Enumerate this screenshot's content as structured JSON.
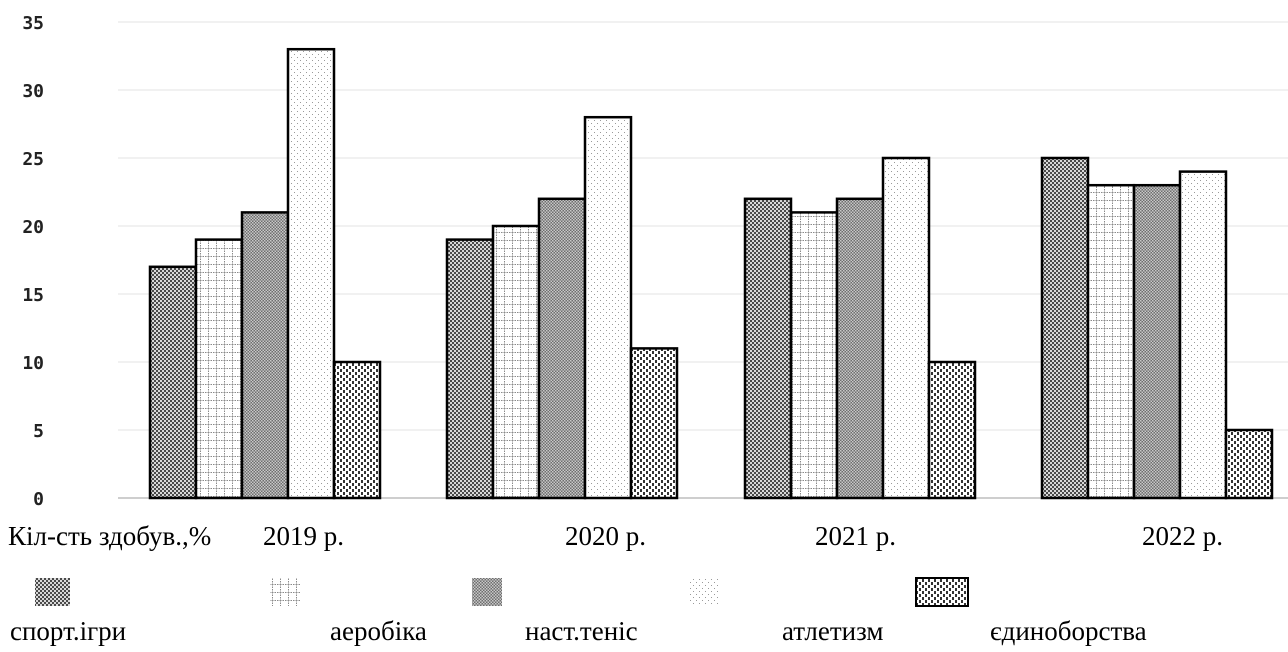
{
  "chart_data": {
    "type": "bar",
    "xlabel": "Кіл-сть здобув.,%",
    "categories": [
      "2019 р.",
      "2020 р.",
      "2021 р.",
      "2022 р."
    ],
    "series": [
      {
        "name": "спорт.ігри",
        "values": [
          17,
          19,
          22,
          25
        ]
      },
      {
        "name": "аеробіка",
        "values": [
          19,
          20,
          21,
          23
        ]
      },
      {
        "name": "наст.теніс",
        "values": [
          21,
          22,
          22,
          23
        ]
      },
      {
        "name": "атлетизм",
        "values": [
          33,
          28,
          25,
          24
        ]
      },
      {
        "name": "єдиноборства",
        "values": [
          10,
          11,
          10,
          5
        ]
      }
    ],
    "ylim": [
      0,
      35
    ],
    "yticks": [
      0,
      5,
      10,
      15,
      20,
      25,
      30,
      35
    ],
    "grid": true,
    "legend_position": "bottom"
  }
}
